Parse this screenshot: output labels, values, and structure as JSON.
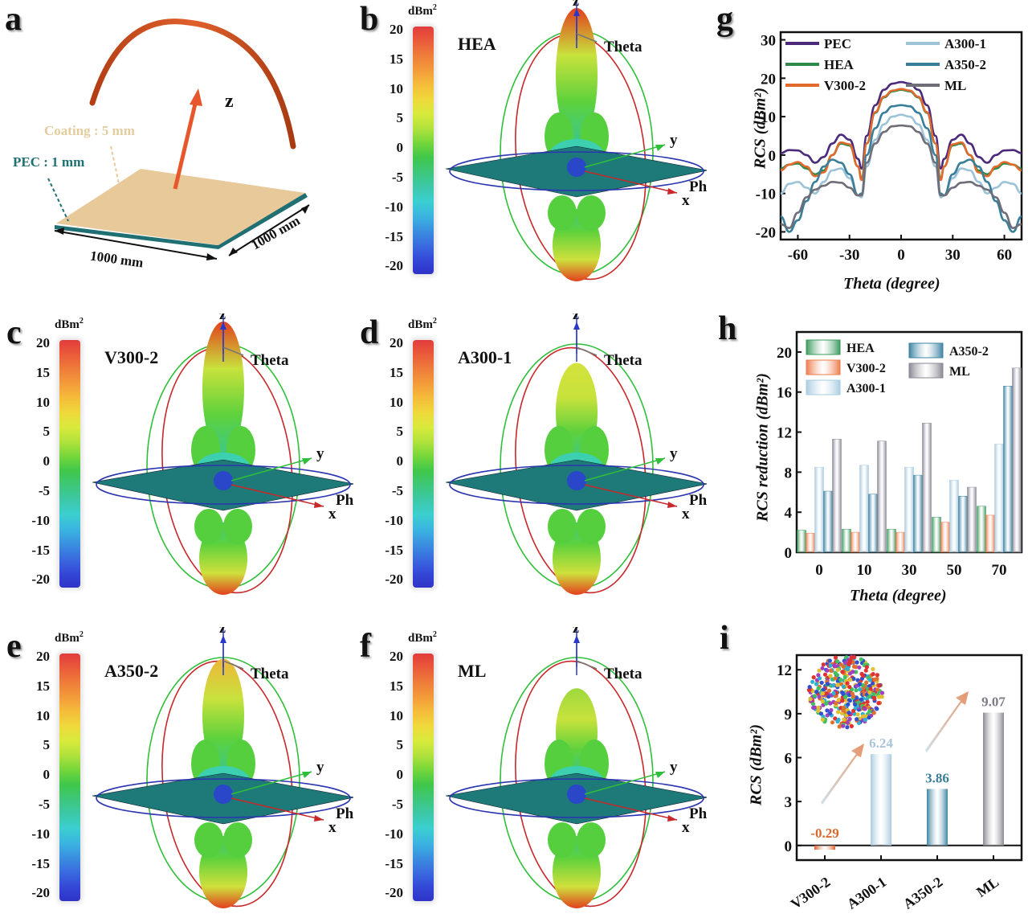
{
  "panels": {
    "a": {
      "letter": "a",
      "coating_label": "Coating : 5 mm",
      "pec_label": "PEC : 1 mm",
      "axis_z": "z",
      "dim_x": "1000 mm",
      "dim_y": "1000 mm",
      "colors": {
        "coating": "#e8c99a",
        "pec": "#1f6f73",
        "arrow": "#e8572c",
        "arc": "#c94a1c"
      }
    },
    "patterns": [
      {
        "letter": "b",
        "material": "HEA",
        "peak": 17
      },
      {
        "letter": "c",
        "material": "V300-2",
        "peak": 17
      },
      {
        "letter": "d",
        "material": "A300-1",
        "peak": 10
      },
      {
        "letter": "e",
        "material": "A350-2",
        "peak": 13
      },
      {
        "letter": "f",
        "material": "ML",
        "peak": 8
      }
    ],
    "pattern_common": {
      "unit": "dBm",
      "unit_sup": "2",
      "colorbar_ticks": [
        "20",
        "15",
        "10",
        "5",
        "0",
        "-5",
        "-10",
        "-15",
        "-20"
      ],
      "colorbar_range": [
        -20,
        20
      ],
      "axis_z": "z",
      "axis_y": "y",
      "axis_x": "x",
      "theta_label": "Theta",
      "phi_label": "Phi"
    }
  },
  "chart_data": [
    {
      "id": "g",
      "letter": "g",
      "type": "line",
      "title": "",
      "xlabel": "Theta (degree)",
      "ylabel": "RCS (dBm²)",
      "xlim": [
        -70,
        70
      ],
      "ylim": [
        -22,
        32
      ],
      "xticks": [
        "-60",
        "-30",
        "0",
        "30",
        "60"
      ],
      "xtick_values": [
        -60,
        -30,
        0,
        30,
        60
      ],
      "yticks": [
        "30",
        "20",
        "10",
        "0",
        "-10",
        "-20"
      ],
      "ytick_values": [
        30,
        20,
        10,
        0,
        -10,
        -20
      ],
      "legend_position": "top",
      "x": [
        -70,
        -65,
        -60,
        -55,
        -50,
        -45,
        -40,
        -35,
        -30,
        -25,
        -23,
        -20,
        -15,
        -10,
        -5,
        0,
        5,
        10,
        15,
        20,
        23,
        25,
        30,
        35,
        40,
        45,
        50,
        55,
        60,
        65,
        70
      ],
      "series": [
        {
          "name": "PEC",
          "color": "#4b2a7b",
          "values": [
            0.5,
            1.3,
            1.2,
            0,
            -2,
            -0.5,
            3,
            5.3,
            4,
            -1,
            -3.5,
            5,
            13,
            17,
            18.6,
            19,
            18.6,
            17,
            13,
            5,
            -3.5,
            -1,
            4,
            5.3,
            3,
            -0.5,
            -2,
            0,
            1.2,
            1.3,
            0.5
          ]
        },
        {
          "name": "HEA",
          "color": "#2e8a4a",
          "values": [
            -3.5,
            -2.5,
            -2.2,
            -3.5,
            -5,
            -4,
            0,
            3,
            2.5,
            -3,
            -6,
            3,
            11,
            15,
            16.6,
            17,
            16.6,
            15,
            11,
            3,
            -6,
            -3,
            2.5,
            3,
            0,
            -4,
            -5,
            -3.5,
            -2.2,
            -2.5,
            -3.5
          ]
        },
        {
          "name": "V300-2",
          "color": "#e26a2c",
          "values": [
            -4,
            -2.5,
            -1.8,
            -3,
            -5.5,
            -4.5,
            0,
            3.3,
            2.8,
            -3,
            -6.5,
            3,
            11.2,
            15.2,
            16.8,
            17.2,
            16.8,
            15.2,
            11.2,
            3,
            -6.5,
            -3,
            2.8,
            3.3,
            0,
            -4.5,
            -5.5,
            -3,
            -1.8,
            -2.5,
            -4
          ]
        },
        {
          "name": "A300-1",
          "color": "#9cc3d8",
          "values": [
            -10,
            -7.5,
            -7,
            -8.5,
            -10,
            -7,
            -4,
            -3.5,
            -6,
            -10.5,
            -11,
            -3,
            4,
            8,
            10,
            10.5,
            10,
            8,
            4,
            -3,
            -11,
            -10.5,
            -6,
            -3.5,
            -4,
            -7,
            -10,
            -8.5,
            -7,
            -7.5,
            -10
          ]
        },
        {
          "name": "A350-2",
          "color": "#3a7f99",
          "values": [
            -16,
            -20,
            -17,
            -12,
            -7,
            -3,
            -1.2,
            -2,
            -5,
            -10.5,
            -10,
            0,
            7,
            11,
            12.7,
            13,
            12.7,
            11,
            7,
            0,
            -10,
            -10.5,
            -5,
            -2,
            -1.2,
            -3,
            -7,
            -12,
            -17,
            -20,
            -16
          ]
        },
        {
          "name": "ML",
          "color": "#6f6e78",
          "values": [
            -18,
            -19,
            -15,
            -11,
            -9,
            -8,
            -7,
            -7.2,
            -8.5,
            -10.5,
            -10.5,
            -2,
            3,
            6,
            7.5,
            7.7,
            7.5,
            6,
            3,
            -2,
            -10.5,
            -10.5,
            -8.5,
            -7.2,
            -7,
            -8,
            -9,
            -11,
            -15,
            -19,
            -18
          ]
        }
      ]
    },
    {
      "id": "h",
      "letter": "h",
      "type": "bar",
      "title": "",
      "xlabel": "Theta (degree)",
      "ylabel": "RCS reduction (dBm²)",
      "ylim": [
        0,
        22
      ],
      "yticks": [
        "0",
        "4",
        "8",
        "12",
        "16",
        "20"
      ],
      "ytick_values": [
        0,
        4,
        8,
        12,
        16,
        20
      ],
      "legend_position": "top-left",
      "categories": [
        "0",
        "10",
        "30",
        "50",
        "70"
      ],
      "series": [
        {
          "name": "HEA",
          "color": "#3b9a5e",
          "values": [
            2.2,
            2.3,
            2.3,
            3.5,
            4.6
          ]
        },
        {
          "name": "V300-2",
          "color": "#ee7c4e",
          "values": [
            1.9,
            2.0,
            2.0,
            3.0,
            3.7
          ]
        },
        {
          "name": "A300-1",
          "color": "#a9cce0",
          "values": [
            8.5,
            8.7,
            8.5,
            7.2,
            10.8
          ]
        },
        {
          "name": "A350-2",
          "color": "#3d84a4",
          "values": [
            6.1,
            5.8,
            7.7,
            5.6,
            16.6
          ]
        },
        {
          "name": "ML",
          "color": "#8a8994",
          "values": [
            11.3,
            11.1,
            12.9,
            6.5,
            18.4
          ]
        }
      ]
    },
    {
      "id": "i",
      "letter": "i",
      "type": "bar",
      "title": "",
      "xlabel": "",
      "ylabel": "RCS (dBm²)",
      "ylim": [
        -1,
        13
      ],
      "yticks": [
        "0",
        "3",
        "6",
        "9",
        "12"
      ],
      "ytick_values": [
        0,
        3,
        6,
        9,
        12
      ],
      "categories": [
        "V300-2",
        "A300-1",
        "A350-2",
        "ML"
      ],
      "values": [
        -0.29,
        6.24,
        3.86,
        9.07
      ],
      "data_labels": [
        "-0.29",
        "6.24",
        "3.86",
        "9.07"
      ],
      "colors": [
        "#e0602c",
        "#a9cce0",
        "#3d84a4",
        "#8a8994"
      ],
      "label_colors": [
        "#d9692a",
        "#a9c6d8",
        "#3a7f99",
        "#7d7c86"
      ]
    }
  ]
}
